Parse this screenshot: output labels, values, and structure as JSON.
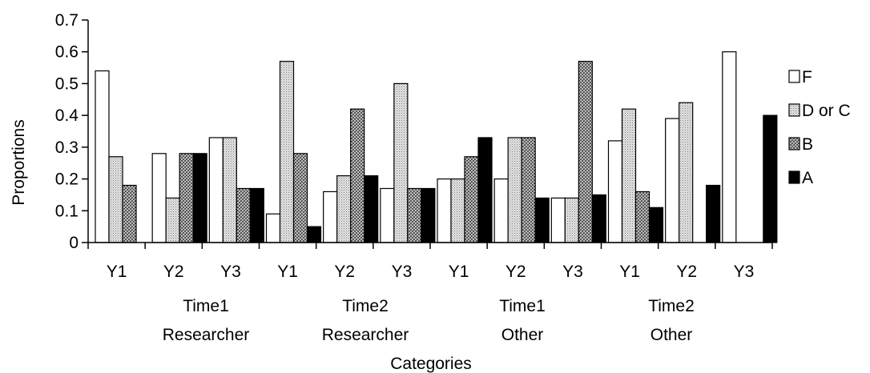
{
  "chart_data": {
    "type": "bar",
    "title": "",
    "xlabel": "Categories",
    "ylabel": "Proportions",
    "ylim": [
      0,
      0.7
    ],
    "yticks": [
      "0",
      "0.1",
      "0.2",
      "0.3",
      "0.4",
      "0.5",
      "0.6",
      "0.7"
    ],
    "categories": [
      "Y1",
      "Y2",
      "Y3",
      "Y1",
      "Y2",
      "Y3",
      "Y1",
      "Y2",
      "Y3",
      "Y1",
      "Y2",
      "Y3"
    ],
    "groups": [
      {
        "line1": "Time1",
        "line2": "Researcher"
      },
      {
        "line1": "Time2",
        "line2": "Researcher"
      },
      {
        "line1": "Time1",
        "line2": "Other"
      },
      {
        "line1": "Time2",
        "line2": "Other"
      }
    ],
    "series": [
      {
        "name": "F",
        "pattern": "white",
        "values": [
          0.54,
          0.28,
          0.33,
          0.09,
          0.16,
          0.17,
          0.2,
          0.2,
          0.14,
          0.32,
          0.39,
          0.6
        ]
      },
      {
        "name": "D or C",
        "pattern": "dots",
        "values": [
          0.27,
          0.14,
          0.33,
          0.57,
          0.21,
          0.5,
          0.2,
          0.33,
          0.14,
          0.42,
          0.44,
          0
        ]
      },
      {
        "name": "B",
        "pattern": "hatch",
        "values": [
          0.18,
          0.28,
          0.17,
          0.28,
          0.42,
          0.17,
          0.27,
          0.33,
          0.57,
          0.16,
          0,
          0
        ]
      },
      {
        "name": "A",
        "pattern": "black",
        "values": [
          0,
          0.28,
          0.17,
          0.05,
          0.21,
          0.17,
          0.33,
          0.14,
          0.15,
          0.11,
          0.18,
          0.4
        ]
      }
    ],
    "legend_position": "right",
    "grid": false
  }
}
